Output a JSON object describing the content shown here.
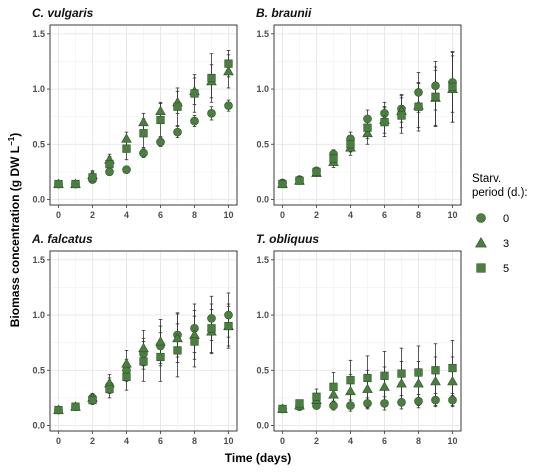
{
  "chart_data": {
    "type": "scatter",
    "xlabel": "Time (days)",
    "ylabel_main": "Biomass concentration (g DW L",
    "ylabel_sup": "−1",
    "ylabel_close": ")",
    "x": [
      0,
      1,
      2,
      3,
      4,
      5,
      6,
      7,
      8,
      9,
      10
    ],
    "xlim": [
      -0.5,
      10.5
    ],
    "ylim": [
      -0.05,
      1.58
    ],
    "xticks": [
      "0",
      "2",
      "4",
      "6",
      "8",
      "10"
    ],
    "yticks": [
      "0.0",
      "0.5",
      "1.0",
      "1.5"
    ],
    "grid": true,
    "marker_color": "#4a7f3f",
    "legend": {
      "title_line1": "Starv.",
      "title_line2": "period (d.):",
      "placement": "right",
      "entries": [
        {
          "label": "0",
          "shape": "circle"
        },
        {
          "label": "3",
          "shape": "triangle"
        },
        {
          "label": "5",
          "shape": "square"
        }
      ]
    },
    "panels": [
      {
        "title": "C. vulgaris",
        "series": [
          {
            "name": "0",
            "shape": "circle",
            "values": [
              0.14,
              0.14,
              0.18,
              0.25,
              0.27,
              0.42,
              0.52,
              0.61,
              0.71,
              0.78,
              0.85
            ],
            "errors": [
              0.01,
              0.01,
              0.02,
              0.02,
              0.03,
              0.04,
              0.04,
              0.05,
              0.05,
              0.06,
              0.05
            ]
          },
          {
            "name": "3",
            "shape": "triangle",
            "values": [
              0.14,
              0.14,
              0.22,
              0.36,
              0.55,
              0.7,
              0.8,
              0.88,
              0.98,
              1.07,
              1.16
            ],
            "errors": [
              0.01,
              0.02,
              0.04,
              0.05,
              0.06,
              0.08,
              0.08,
              0.1,
              0.12,
              0.15,
              0.15
            ]
          },
          {
            "name": "5",
            "shape": "square",
            "values": [
              0.14,
              0.14,
              0.2,
              0.32,
              0.46,
              0.6,
              0.72,
              0.84,
              0.96,
              1.1,
              1.23
            ],
            "errors": [
              0.01,
              0.02,
              0.05,
              0.07,
              0.1,
              0.13,
              0.15,
              0.17,
              0.17,
              0.22,
              0.12
            ]
          }
        ]
      },
      {
        "title": "B. braunii",
        "series": [
          {
            "name": "0",
            "shape": "circle",
            "values": [
              0.15,
              0.18,
              0.26,
              0.41,
              0.55,
              0.73,
              0.78,
              0.82,
              0.97,
              1.03,
              1.06
            ],
            "errors": [
              0.01,
              0.02,
              0.03,
              0.04,
              0.06,
              0.08,
              0.1,
              0.12,
              0.18,
              0.22,
              0.27
            ]
          },
          {
            "name": "3",
            "shape": "triangle",
            "values": [
              0.14,
              0.17,
              0.24,
              0.34,
              0.47,
              0.6,
              0.72,
              0.8,
              0.85,
              0.92,
              1.0
            ],
            "errors": [
              0.01,
              0.02,
              0.03,
              0.05,
              0.07,
              0.1,
              0.12,
              0.15,
              0.2,
              0.25,
              0.3
            ]
          },
          {
            "name": "5",
            "shape": "square",
            "values": [
              0.14,
              0.17,
              0.25,
              0.37,
              0.5,
              0.65,
              0.7,
              0.76,
              0.84,
              0.93,
              1.02
            ],
            "errors": [
              0.01,
              0.02,
              0.03,
              0.05,
              0.07,
              0.1,
              0.13,
              0.16,
              0.22,
              0.27,
              0.32
            ]
          }
        ]
      },
      {
        "title": "A. falcatus",
        "series": [
          {
            "name": "0",
            "shape": "circle",
            "values": [
              0.14,
              0.17,
              0.25,
              0.36,
              0.5,
              0.65,
              0.72,
              0.82,
              0.88,
              0.97,
              1.0
            ],
            "errors": [
              0.01,
              0.02,
              0.03,
              0.07,
              0.1,
              0.14,
              0.18,
              0.2,
              0.22,
              0.2,
              0.2
            ]
          },
          {
            "name": "3",
            "shape": "triangle",
            "values": [
              0.14,
              0.17,
              0.25,
              0.38,
              0.56,
              0.7,
              0.76,
              0.79,
              0.82,
              0.85,
              0.9
            ],
            "errors": [
              0.01,
              0.02,
              0.04,
              0.08,
              0.12,
              0.16,
              0.2,
              0.22,
              0.22,
              0.2,
              0.18
            ]
          },
          {
            "name": "5",
            "shape": "square",
            "values": [
              0.14,
              0.17,
              0.23,
              0.33,
              0.44,
              0.58,
              0.62,
              0.68,
              0.76,
              0.88,
              0.9
            ],
            "errors": [
              0.01,
              0.02,
              0.04,
              0.08,
              0.12,
              0.18,
              0.22,
              0.24,
              0.23,
              0.22,
              0.2
            ]
          }
        ]
      },
      {
        "title": "T. obliquus",
        "series": [
          {
            "name": "0",
            "shape": "circle",
            "values": [
              0.15,
              0.17,
              0.18,
              0.18,
              0.18,
              0.2,
              0.2,
              0.21,
              0.22,
              0.23,
              0.23
            ],
            "errors": [
              0.01,
              0.02,
              0.03,
              0.04,
              0.05,
              0.05,
              0.06,
              0.06,
              0.06,
              0.06,
              0.06
            ]
          },
          {
            "name": "3",
            "shape": "triangle",
            "values": [
              0.15,
              0.18,
              0.23,
              0.28,
              0.31,
              0.33,
              0.35,
              0.38,
              0.38,
              0.4,
              0.4
            ],
            "errors": [
              0.01,
              0.03,
              0.06,
              0.1,
              0.15,
              0.17,
              0.18,
              0.2,
              0.2,
              0.22,
              0.22
            ]
          },
          {
            "name": "5",
            "shape": "square",
            "values": [
              0.15,
              0.2,
              0.26,
              0.35,
              0.41,
              0.43,
              0.45,
              0.47,
              0.48,
              0.5,
              0.52
            ],
            "errors": [
              0.01,
              0.03,
              0.07,
              0.13,
              0.18,
              0.2,
              0.22,
              0.23,
              0.24,
              0.24,
              0.25
            ]
          }
        ]
      }
    ]
  }
}
